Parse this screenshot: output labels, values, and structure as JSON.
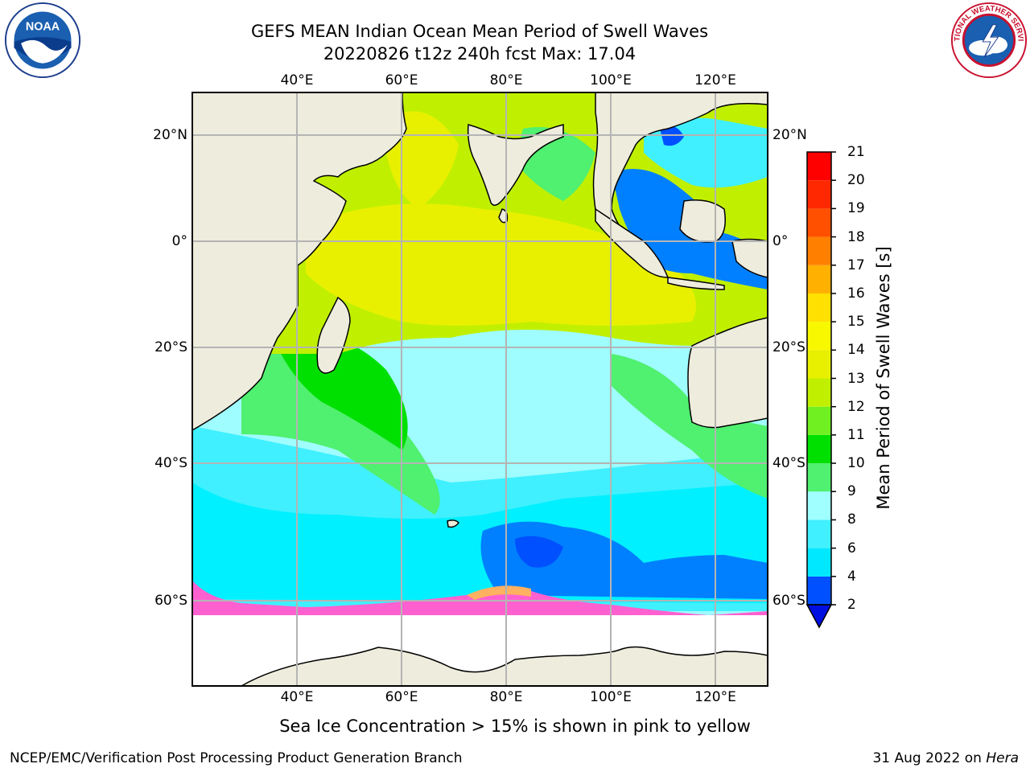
{
  "title_line1": "GEFS MEAN Indian Ocean Mean Period of Swell Waves",
  "title_line2": "20220826 t12z 240h fcst   Max: 17.04",
  "logos": {
    "left": "NOAA",
    "right": "NATIONAL WEATHER SERVICE"
  },
  "lon_labels": [
    "40°E",
    "60°E",
    "80°E",
    "100°E",
    "120°E"
  ],
  "lat_labels": [
    "20°N",
    "0°",
    "20°S",
    "40°S",
    "60°S"
  ],
  "colorbar": {
    "title": "Mean Period of Swell Waves [s]",
    "ticks": [
      "2",
      "4",
      "6",
      "8",
      "9",
      "10",
      "11",
      "12",
      "13",
      "14",
      "15",
      "16",
      "17",
      "18",
      "19",
      "20",
      "21"
    ],
    "colors": [
      "#0050ff",
      "#00e8ff",
      "#40f0ff",
      "#a0ffff",
      "#50f070",
      "#00e000",
      "#70f020",
      "#c0f000",
      "#e8f000",
      "#f8f800",
      "#ffe000",
      "#ffb000",
      "#ff8000",
      "#ff5000",
      "#ff2800",
      "#ff0000"
    ],
    "extend_min_color": "#0010e0"
  },
  "note": "Sea Ice Concentration > 15% is shown in pink to yellow",
  "footer_left": "NCEP/EMC/Verification Post Processing Product Generation Branch",
  "footer_right_date": "31 Aug 2022 on ",
  "footer_right_machine": "Hera",
  "colors": {
    "land": "#eeecdc",
    "grid": "#b4b4b4",
    "sea_ice": "#ff60d0"
  }
}
